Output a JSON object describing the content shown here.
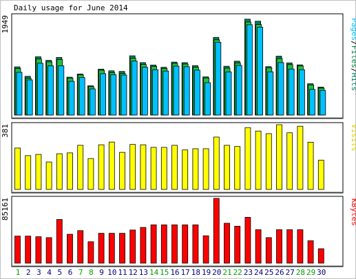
{
  "title": "Daily usage for June 2014",
  "colors": {
    "hits": "#00805c",
    "files": "#008040",
    "pages": "#00c0ff",
    "visits": "#ffff00",
    "kbytes": "#ff0000",
    "weekend": "#00a000",
    "weekday": "#000080"
  },
  "chart_data": [
    {
      "type": "bar",
      "panel": "hits",
      "y_top_label": "1949",
      "ylabel_parts": [
        "Pages",
        "/",
        "Files",
        "/",
        "Hits"
      ],
      "categories": [
        "1",
        "2",
        "3",
        "4",
        "5",
        "6",
        "7",
        "8",
        "9",
        "10",
        "11",
        "12",
        "13",
        "14",
        "15",
        "16",
        "17",
        "18",
        "19",
        "20",
        "21",
        "22",
        "23",
        "24",
        "25",
        "26",
        "27",
        "28",
        "29",
        "30"
      ],
      "weekend_days": [
        1,
        7,
        8,
        14,
        15,
        21,
        22,
        28,
        29
      ],
      "ylim": [
        0,
        1949
      ],
      "series": [
        {
          "name": "Hits",
          "values": [
            940,
            756,
            1138,
            1067,
            1124,
            739,
            801,
            571,
            896,
            863,
            851,
            1156,
            1023,
            976,
            932,
            1033,
            1022,
            965,
            745,
            1515,
            952,
            1051,
            1871,
            1831,
            945,
            1149,
            1018,
            979,
            611,
            546
          ]
        },
        {
          "name": "Files",
          "values": [
            907,
            718,
            1093,
            1037,
            1082,
            721,
            783,
            554,
            874,
            827,
            814,
            1108,
            986,
            949,
            909,
            1008,
            995,
            932,
            724,
            1468,
            915,
            1017,
            1815,
            1766,
            922,
            1102,
            983,
            958,
            588,
            525
          ]
        },
        {
          "name": "Pages",
          "values": [
            833,
            686,
            1011,
            960,
            960,
            658,
            731,
            511,
            808,
            786,
            781,
            1053,
            933,
            885,
            858,
            954,
            943,
            876,
            632,
            1420,
            843,
            969,
            1763,
            1714,
            844,
            1023,
            898,
            884,
            501,
            481
          ]
        }
      ]
    },
    {
      "type": "bar",
      "panel": "visits",
      "y_top_label": "381",
      "ylabel": "Visits",
      "ylim": [
        0,
        381
      ],
      "series": [
        {
          "name": "Visits",
          "values": [
            241,
            197,
            204,
            160,
            208,
            213,
            257,
            180,
            260,
            276,
            216,
            262,
            260,
            245,
            245,
            257,
            230,
            237,
            237,
            305,
            257,
            250,
            360,
            340,
            325,
            377,
            330,
            368,
            275,
            170
          ]
        }
      ]
    },
    {
      "type": "bar",
      "panel": "kbytes",
      "y_top_label": "85161",
      "ylabel": "KBytes",
      "ylim": [
        0,
        85161
      ],
      "series": [
        {
          "name": "KBytes",
          "values": [
            35600,
            35600,
            34800,
            33600,
            57500,
            38000,
            42800,
            28200,
            39300,
            39300,
            39300,
            43600,
            47000,
            50400,
            50400,
            50400,
            50400,
            50400,
            36000,
            85161,
            52500,
            48600,
            60300,
            44000,
            33600,
            44000,
            44000,
            44000,
            29500,
            19000
          ]
        }
      ]
    }
  ]
}
